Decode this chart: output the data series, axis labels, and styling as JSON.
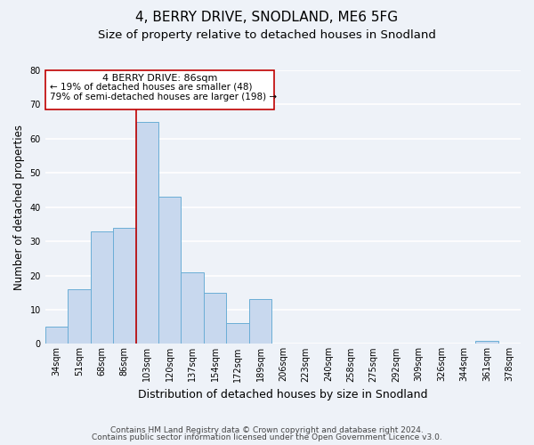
{
  "title": "4, BERRY DRIVE, SNODLAND, ME6 5FG",
  "subtitle": "Size of property relative to detached houses in Snodland",
  "xlabel": "Distribution of detached houses by size in Snodland",
  "ylabel": "Number of detached properties",
  "bar_labels": [
    "34sqm",
    "51sqm",
    "68sqm",
    "86sqm",
    "103sqm",
    "120sqm",
    "137sqm",
    "154sqm",
    "172sqm",
    "189sqm",
    "206sqm",
    "223sqm",
    "240sqm",
    "258sqm",
    "275sqm",
    "292sqm",
    "309sqm",
    "326sqm",
    "344sqm",
    "361sqm",
    "378sqm"
  ],
  "bar_values": [
    5,
    16,
    33,
    34,
    65,
    43,
    21,
    15,
    6,
    13,
    0,
    0,
    0,
    0,
    0,
    0,
    0,
    0,
    0,
    1,
    0
  ],
  "bar_color": "#c8d8ee",
  "bar_edge_color": "#6baed6",
  "vline_color": "#c00000",
  "vline_x_idx": 3.5,
  "annotation_line1": "4 BERRY DRIVE: 86sqm",
  "annotation_line2": "← 19% of detached houses are smaller (48)",
  "annotation_line3": "79% of semi-detached houses are larger (198) →",
  "annotation_box_color": "#c00000",
  "ylim": [
    0,
    80
  ],
  "yticks": [
    0,
    10,
    20,
    30,
    40,
    50,
    60,
    70,
    80
  ],
  "footer_line1": "Contains HM Land Registry data © Crown copyright and database right 2024.",
  "footer_line2": "Contains public sector information licensed under the Open Government Licence v3.0.",
  "bg_color": "#eef2f8",
  "plot_bg_color": "#eef2f8",
  "grid_color": "#ffffff",
  "title_fontsize": 11,
  "subtitle_fontsize": 9.5,
  "xlabel_fontsize": 9,
  "ylabel_fontsize": 8.5,
  "tick_fontsize": 7,
  "footer_fontsize": 6.5
}
